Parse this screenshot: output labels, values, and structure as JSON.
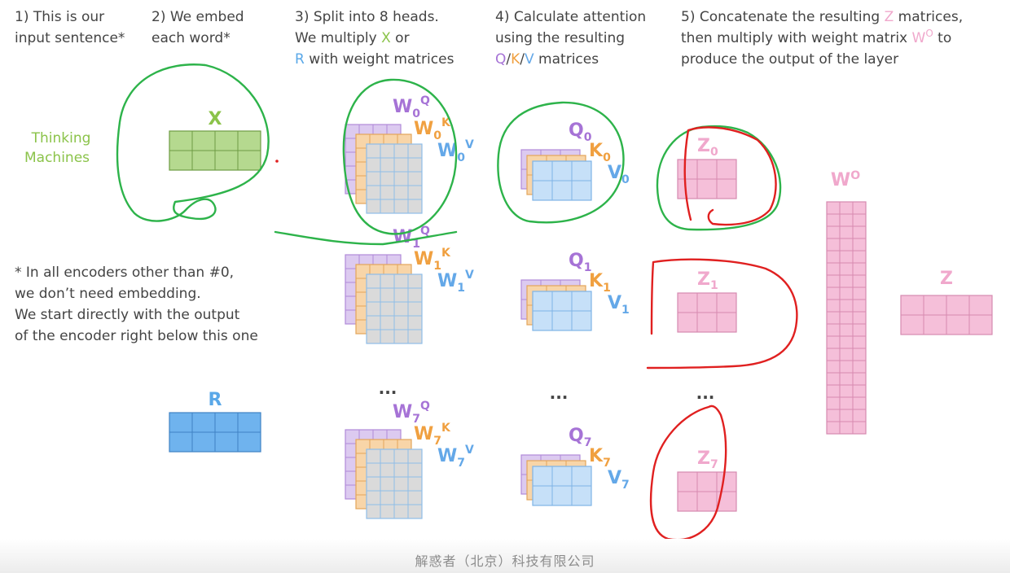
{
  "colors": {
    "x_green": "#8bc34a",
    "x_fill": "#b5d98f",
    "r_blue": "#5aa8e8",
    "r_fill": "#6fb3ee",
    "q_purple": "#a673d6",
    "q_fill": "#dccaf0",
    "k_orange": "#f0a040",
    "k_fill": "#f8d5a8",
    "v_blue": "#64a8e8",
    "v_fill": "#c6e0f8",
    "w_fill": "#dadada",
    "z_pink": "#f0a8cc",
    "z_fill": "#f5bfd9",
    "ink_green": "#2db34a",
    "ink_red": "#e02020"
  },
  "headers": {
    "step1": [
      "1) This is our",
      "input sentence*"
    ],
    "step2": [
      "2) We embed",
      "each word*"
    ],
    "step3": [
      "3) Split into 8 heads.",
      "We multiply ",
      "X",
      " or",
      "R",
      " with weight matrices"
    ],
    "step4": [
      "4) Calculate attention",
      "using the resulting",
      "Q",
      "/",
      "K",
      "/",
      "V",
      " matrices"
    ],
    "step5": [
      "5) Concatenate the resulting ",
      "Z",
      " matrices,",
      "then multiply with weight matrix ",
      "W",
      "O",
      " to",
      "produce the output of the layer"
    ]
  },
  "input_sentence": [
    "Thinking",
    "Machines"
  ],
  "embedding": {
    "label": "X"
  },
  "r_matrix": {
    "label": "R"
  },
  "footnote": [
    "* In all encoders other than #0,",
    "we don’t need embedding.",
    "We start directly with the output",
    "of the encoder right below this one"
  ],
  "heads": [
    {
      "idx": "0",
      "w": "W",
      "q": "Q",
      "k": "K",
      "v": "V",
      "z": "Z"
    },
    {
      "idx": "1",
      "w": "W",
      "q": "Q",
      "k": "K",
      "v": "V",
      "z": "Z"
    },
    {
      "idx": "7",
      "w": "W",
      "q": "Q",
      "k": "K",
      "v": "V",
      "z": "Z"
    }
  ],
  "ellipsis": "...",
  "wo": {
    "base": "W",
    "sup": "O"
  },
  "output": {
    "label": "Z"
  },
  "watermark": "解惑者（北京）科技有限公司"
}
